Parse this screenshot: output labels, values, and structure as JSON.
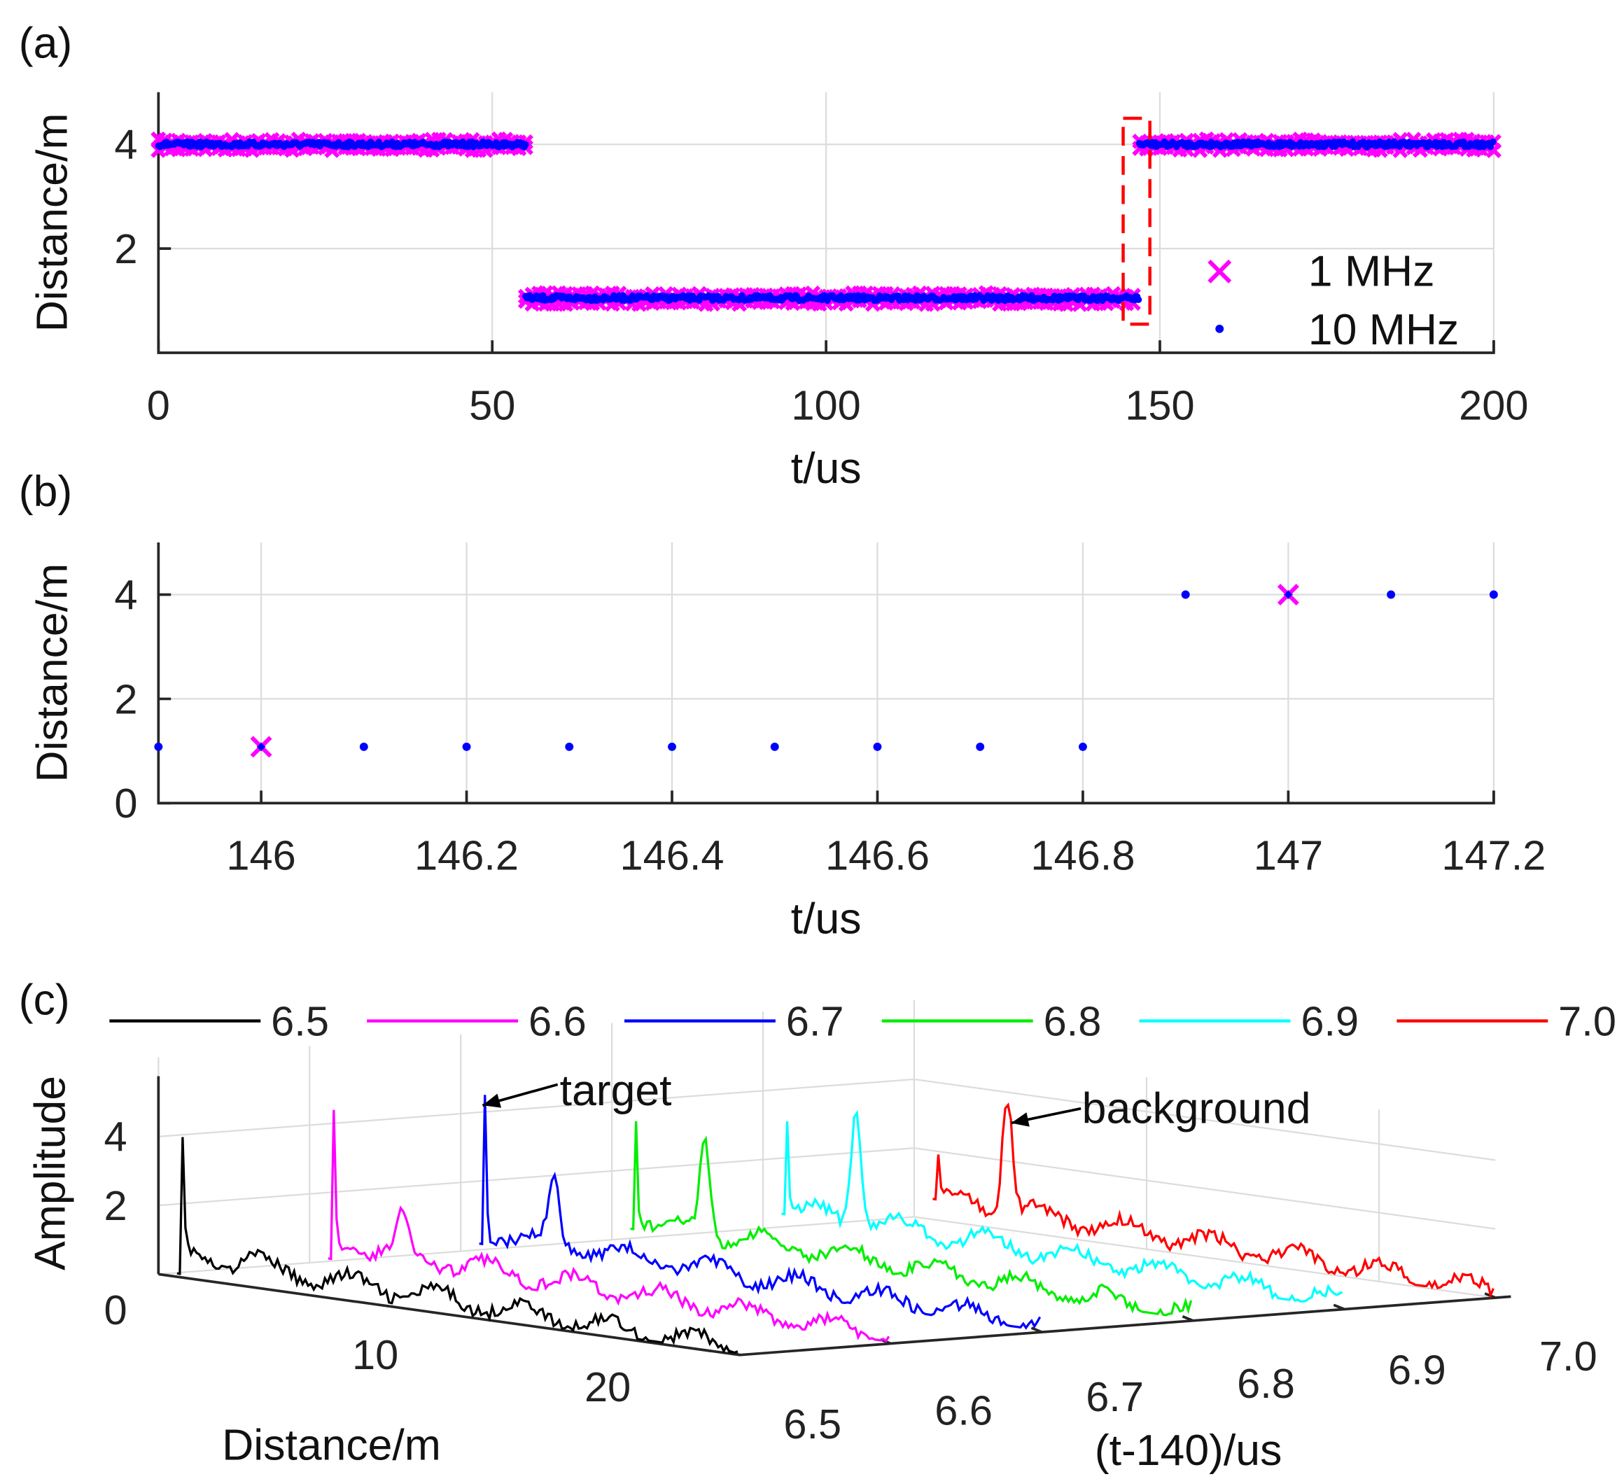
{
  "chart_data": [
    {
      "panel": "(a)",
      "type": "scatter",
      "xlabel": "t/us",
      "ylabel": "Distance/m",
      "xlim": [
        0,
        200
      ],
      "ylim": [
        0,
        5
      ],
      "xticks": [
        "0",
        "50",
        "100",
        "150",
        "200"
      ],
      "xtick_values": [
        0,
        50,
        100,
        150,
        200
      ],
      "yticks": [
        "2",
        "4"
      ],
      "ytick_values": [
        2,
        4
      ],
      "grid": true,
      "legend": {
        "placement": "bottom-right",
        "entries": [
          "1   MHz",
          "10 MHz"
        ]
      },
      "series": [
        {
          "name": "1 MHz",
          "marker": "x",
          "color": "#ff00ff",
          "sample_interval_us": 1,
          "segments": [
            {
              "t_start": 0,
              "t_end": 55,
              "distance": 4.0
            },
            {
              "t_start": 55,
              "t_end": 146,
              "distance": 1.05
            },
            {
              "t_start": 147,
              "t_end": 200,
              "distance": 4.0
            }
          ]
        },
        {
          "name": "10 MHz",
          "marker": ".",
          "color": "#0000ff",
          "sample_interval_us": 0.1,
          "segments": [
            {
              "t_start": 0,
              "t_end": 55,
              "distance": 4.0
            },
            {
              "t_start": 55,
              "t_end": 146.8,
              "distance": 1.05
            },
            {
              "t_start": 146.9,
              "t_end": 200,
              "distance": 4.0
            }
          ]
        }
      ],
      "annotation": {
        "type": "dashed-rectangle",
        "color": "#ff0000",
        "t_range": [
          144.5,
          148.5
        ],
        "distance_range": [
          0.55,
          4.5
        ]
      }
    },
    {
      "panel": "(b)",
      "type": "scatter",
      "xlabel": "t/us",
      "ylabel": "Distance/m",
      "xlim": [
        145.9,
        147.2
      ],
      "ylim": [
        0,
        5
      ],
      "xticks": [
        "146",
        "146.2",
        "146.4",
        "146.6",
        "146.8",
        "147",
        "147.2"
      ],
      "xtick_values": [
        146,
        146.2,
        146.4,
        146.6,
        146.8,
        147,
        147.2
      ],
      "yticks": [
        "0",
        "2",
        "4"
      ],
      "ytick_values": [
        0,
        2,
        4
      ],
      "grid": true,
      "series": [
        {
          "name": "1 MHz",
          "marker": "x",
          "color": "#ff00ff",
          "x": [
            146,
            147
          ],
          "y": [
            1.08,
            4.0
          ]
        },
        {
          "name": "10 MHz",
          "marker": ".",
          "color": "#0000ff",
          "x": [
            145.9,
            146.0,
            146.1,
            146.2,
            146.3,
            146.4,
            146.5,
            146.6,
            146.7,
            146.8,
            146.9,
            147.0,
            147.1,
            147.2
          ],
          "y": [
            1.08,
            1.08,
            1.08,
            1.08,
            1.08,
            1.08,
            1.08,
            1.08,
            1.08,
            1.08,
            4.0,
            4.0,
            4.0,
            4.0
          ]
        }
      ]
    },
    {
      "panel": "(c)",
      "type": "line",
      "view": "3d-waterfall",
      "xlabel": "Distance/m",
      "ylabel": "(t-140)/us",
      "zlabel": "Amplitude",
      "xlim": [
        0,
        25
      ],
      "ylim": [
        6.5,
        7.0
      ],
      "zlim": [
        0,
        5
      ],
      "xticks": [
        "10",
        "20"
      ],
      "xtick_values": [
        10,
        20
      ],
      "yticks": [
        "6.5",
        "6.6",
        "6.7",
        "6.8",
        "6.9",
        "7.0"
      ],
      "ytick_values": [
        6.5,
        6.6,
        6.7,
        6.8,
        6.9,
        7.0
      ],
      "zticks": [
        "0",
        "2",
        "4"
      ],
      "ztick_values": [
        0,
        2,
        4
      ],
      "legend": {
        "placement": "top",
        "orientation": "horizontal"
      },
      "annotations": [
        {
          "text": "target",
          "series": "6.7"
        },
        {
          "text": "background",
          "series": "7.0"
        }
      ],
      "series": [
        {
          "name": "6.5",
          "color": "#000000",
          "t": 6.5,
          "peaks": [
            {
              "distance": 1.0,
              "amplitude": 3.6
            },
            {
              "distance": 4.0,
              "amplitude": 0.4
            }
          ]
        },
        {
          "name": "6.6",
          "color": "#ff00ff",
          "t": 6.6,
          "peaks": [
            {
              "distance": 1.0,
              "amplitude": 4.3
            },
            {
              "distance": 4.0,
              "amplitude": 1.1
            }
          ]
        },
        {
          "name": "6.7",
          "color": "#0000ff",
          "t": 6.7,
          "peaks": [
            {
              "distance": 1.0,
              "amplitude": 4.7
            },
            {
              "distance": 4.0,
              "amplitude": 1.9
            }
          ]
        },
        {
          "name": "6.8",
          "color": "#00ee00",
          "t": 6.8,
          "peaks": [
            {
              "distance": 1.0,
              "amplitude": 3.6
            },
            {
              "distance": 4.0,
              "amplitude": 2.8
            }
          ]
        },
        {
          "name": "6.9",
          "color": "#00ffff",
          "t": 6.9,
          "peaks": [
            {
              "distance": 1.0,
              "amplitude": 3.1
            },
            {
              "distance": 4.0,
              "amplitude": 3.3
            }
          ]
        },
        {
          "name": "7.0",
          "color": "#ff0000",
          "t": 7.0,
          "peaks": [
            {
              "distance": 1.0,
              "amplitude": 1.4
            },
            {
              "distance": 4.0,
              "amplitude": 3.4
            }
          ]
        }
      ]
    }
  ]
}
